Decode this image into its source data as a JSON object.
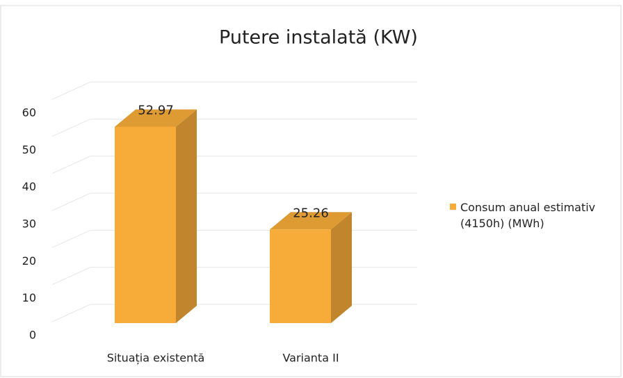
{
  "chart_data": {
    "type": "bar3d",
    "title": "Putere instalată (KW)",
    "categories": [
      "Situația existentă",
      "Varianta II"
    ],
    "series": [
      {
        "name": "Consum anual estimativ (4150h) (MWh)",
        "color": "#f7ac3a",
        "values": [
          52.97,
          25.26
        ]
      }
    ],
    "ylim": [
      0,
      60
    ],
    "yticks": [
      0,
      10,
      20,
      30,
      40,
      50,
      60
    ],
    "grid": true,
    "legend": "right"
  }
}
